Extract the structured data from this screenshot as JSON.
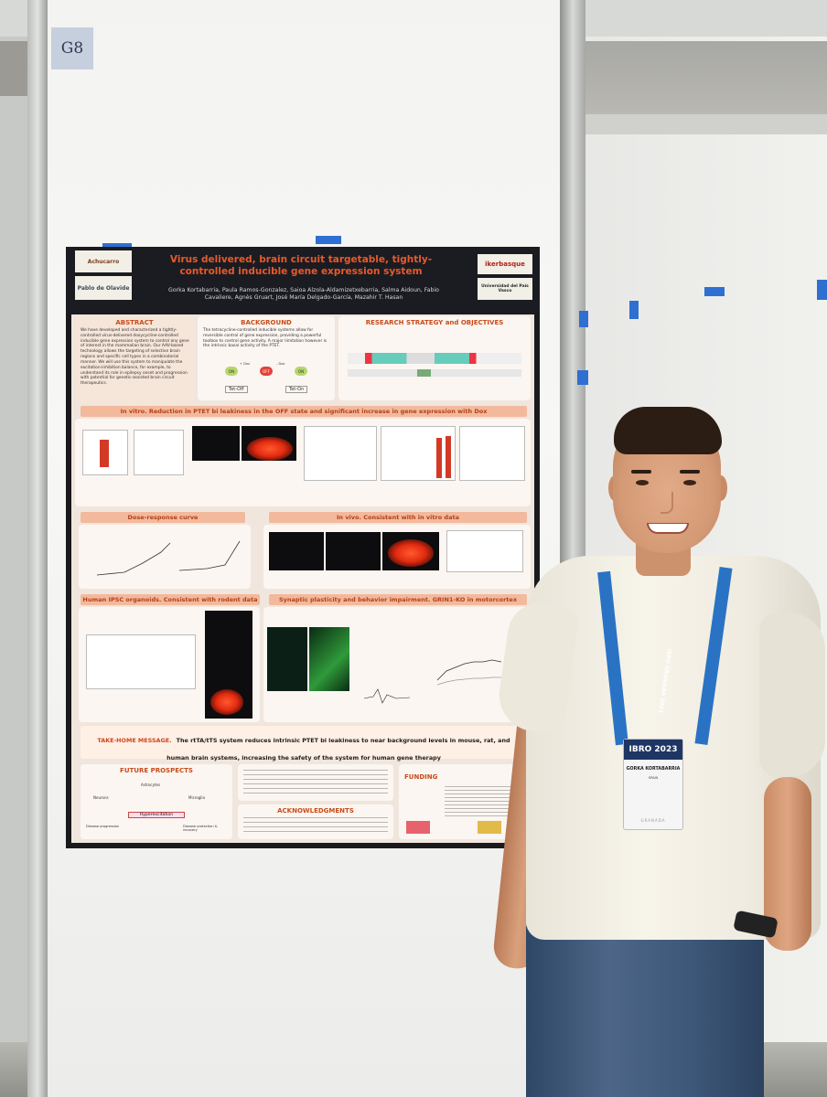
{
  "board": {
    "label": "G8"
  },
  "poster": {
    "title": "Virus delivered, brain circuit targetable, tightly-controlled inducible gene expression system",
    "authors": "Gorka Kortabarria, Paula Ramos-Gonzalez, Saioa Alzola-Aldamizetxebarria, Salma Aidoun, Fabio Cavaliere, Agnès Gruart, José María Delgado-García, Mazahir T. Hasan",
    "logos": {
      "left1": "Achucarro",
      "left2": "Pablo de Olavide",
      "right1": "ikerbasque",
      "right2": "Universidad del País Vasco"
    },
    "sections": {
      "abstract": "ABSTRACT",
      "background": "BACKGROUND",
      "research": "RESEARCH STRATEGY and OBJECTIVES",
      "in_vitro": "In vitro. Reduction in PTET bi leakiness in the OFF state and significant increase in gene expression with Dox",
      "dose_response": "Dose-response curve",
      "in_vivo": "In vivo. Consistent with in vitro data",
      "ipsc": "Human IPSC organoids. Consistent with rodent data",
      "synaptic": "Synaptic plasticity and behavior impairment. GRIN1-KO in motorcortex",
      "future": "FUTURE PROSPECTS",
      "ack": "ACKNOWLEDGMENTS",
      "funding": "FUNDING"
    },
    "abstract_text": "We have developed and characterized a tightly-controlled virus-delivered doxycycline-controlled inducible gene expression system to control any gene of interest in the mammalian brain. Our AAV-based technology allows the targeting of selective brain regions and specific cell types in a combinatorial manner. We will use this system to manipulate the excitation-inhibition balance, for example, to understand its role in epilepsy onset and progression with potential for genetic-assisted brain circuit therapeutics.",
    "background_text": "The tetracycline-controlled inducible systems allow for reversible control of gene expression, providing a powerful toolbox to control gene activity. A major limitation however is the intrinsic basal activity of the PTET.",
    "background_labels": {
      "on": "ON",
      "off": "OFF",
      "tet_off": "Tet-Off",
      "tet_on": "Tet-On",
      "dox_plus": "+ Dox",
      "dox_minus": "- Dox"
    },
    "takehome_head": "TAKE-HOME MESSAGE.",
    "takehome_text": "The rtTA/tTS system reduces intrinsic PTET bi leakiness to near background levels in mouse, rat, and human brain systems, increasing the safety of the system for human gene therapy",
    "future_labels": {
      "hyper": "Hyperexcitation",
      "neurons": "Neurons",
      "astro": "Astrocytes",
      "micro": "Microglia",
      "disease": "Disease progression",
      "protect": "Disease protection & recovery"
    }
  },
  "badge": {
    "brand": "IBRO 2023",
    "name": "GORKA KORTABARRIA",
    "country": "SPAIN",
    "footer": "GRANADA"
  },
  "lanyard": {
    "text": "IBRO GRANADA 2023"
  }
}
